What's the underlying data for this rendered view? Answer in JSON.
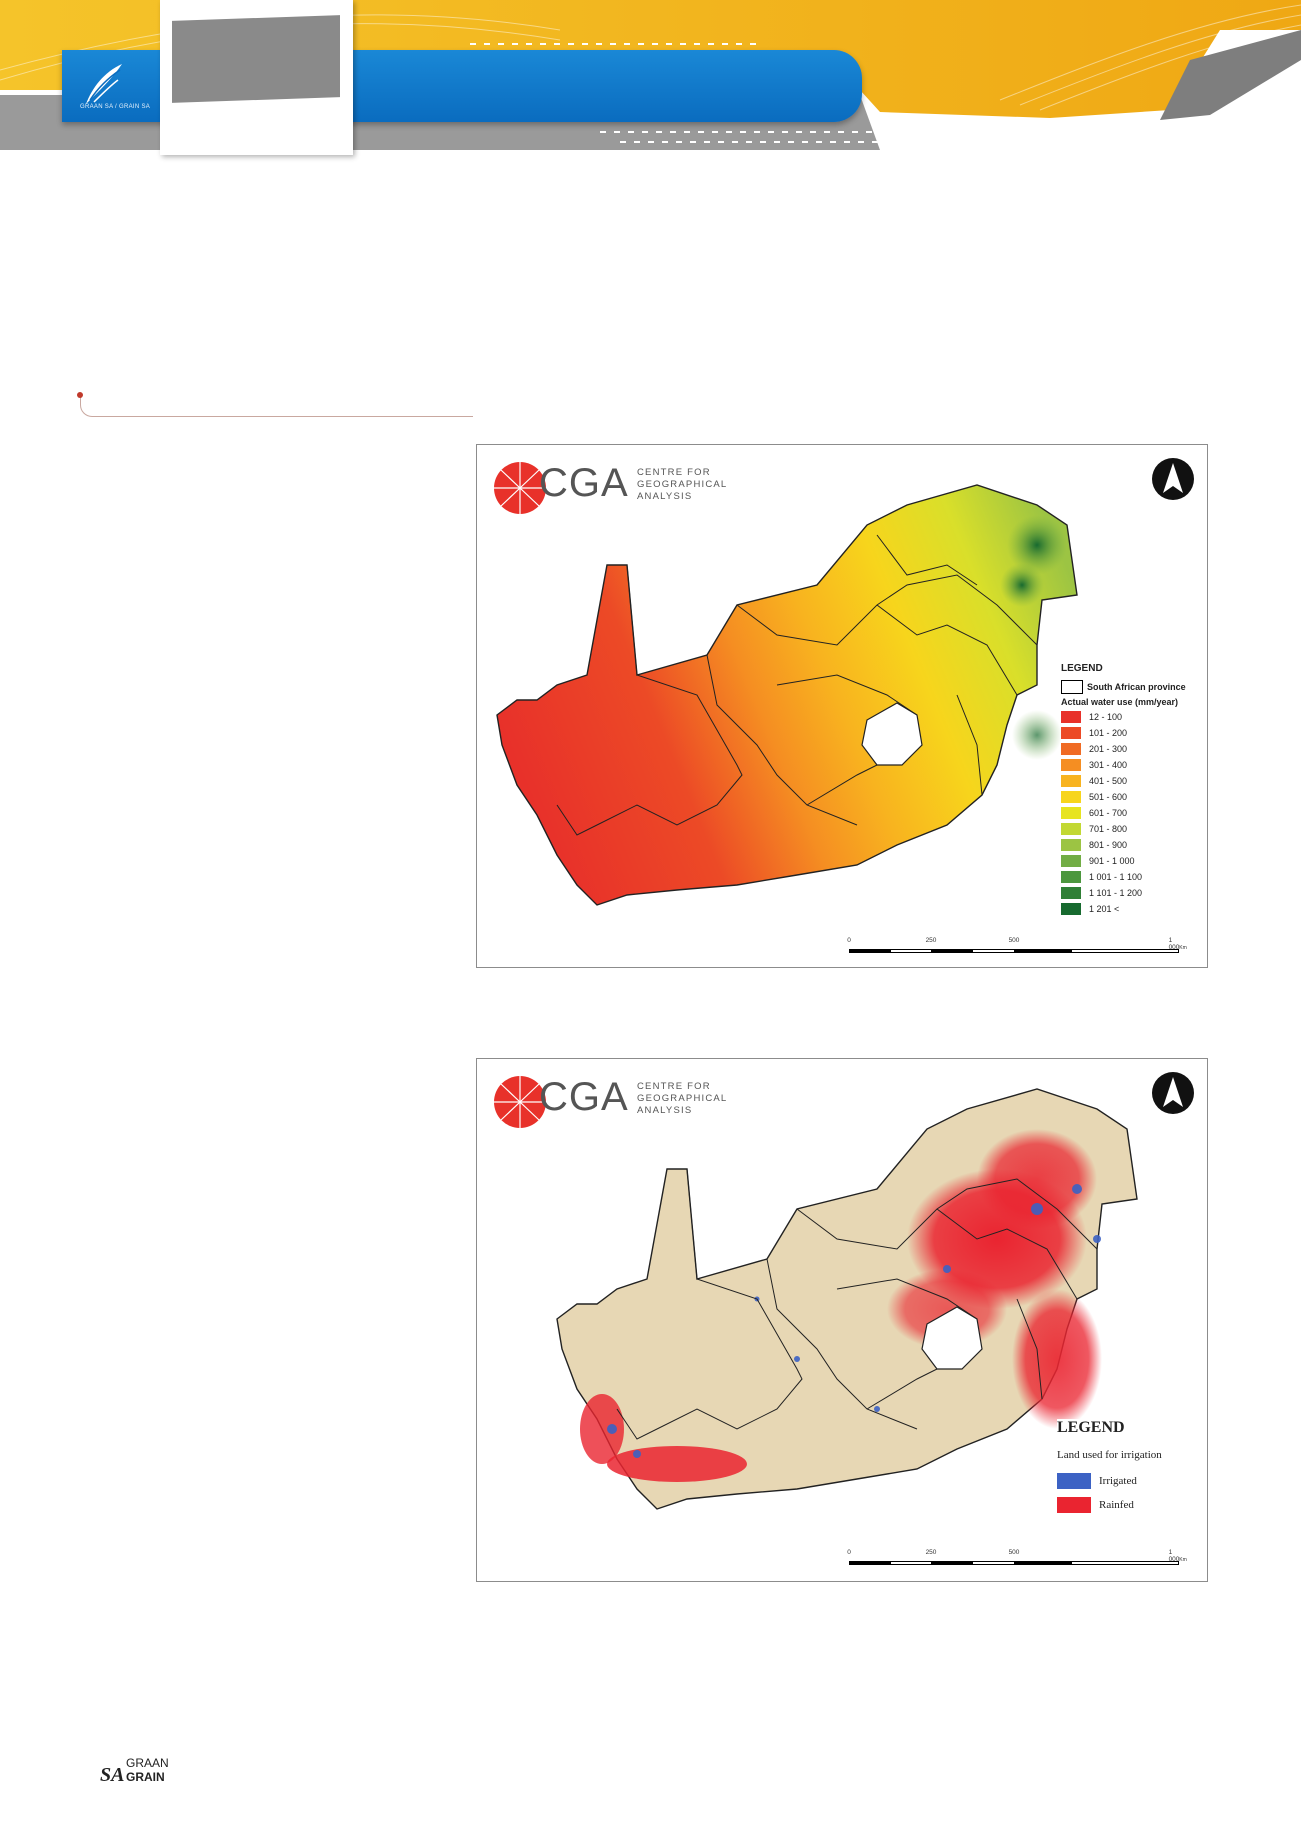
{
  "header": {
    "logo_text": "GRAAN SA / GRAIN SA",
    "colors": {
      "gold": "#f2b21b",
      "blue": "#0a6cbf",
      "gray": "#8a8a8a"
    }
  },
  "maps": [
    {
      "logo_word": "CGA",
      "logo_sub": "CENTRE FOR GEOGRAPHICAL ANALYSIS",
      "legend": {
        "title": "LEGEND",
        "province_label": "South African province",
        "subtitle": "Actual water use (mm/year)",
        "classes": [
          {
            "label": "12 - 100",
            "color": "#e8312a"
          },
          {
            "label": "101 - 200",
            "color": "#ec4a26"
          },
          {
            "label": "201 - 300",
            "color": "#f06b24"
          },
          {
            "label": "301 - 400",
            "color": "#f58e22"
          },
          {
            "label": "401 - 500",
            "color": "#f8b31f"
          },
          {
            "label": "501 - 600",
            "color": "#f7d51c"
          },
          {
            "label": "601 - 700",
            "color": "#e7e420"
          },
          {
            "label": "701 - 800",
            "color": "#c2d833"
          },
          {
            "label": "801 - 900",
            "color": "#9cc443"
          },
          {
            "label": "901 - 1 000",
            "color": "#72ad45"
          },
          {
            "label": "1 001 - 1 100",
            "color": "#4c973e"
          },
          {
            "label": "1 101 - 1 200",
            "color": "#2f7f35"
          },
          {
            "label": "1 201 <",
            "color": "#176a2f"
          }
        ]
      },
      "scale_ticks": [
        "0",
        "250",
        "500",
        "1 000"
      ],
      "scale_unit": "Km"
    },
    {
      "logo_word": "CGA",
      "logo_sub": "CENTRE FOR GEOGRAPHICAL ANALYSIS",
      "legend": {
        "title": "LEGEND",
        "subtitle": "Land used for irrigation",
        "classes": [
          {
            "label": "Irrigated",
            "color": "#3c62c4"
          },
          {
            "label": "Rainfed",
            "color": "#ea2430"
          }
        ]
      },
      "base_color": "#e7d7b4",
      "scale_ticks": [
        "0",
        "250",
        "500",
        "1 000"
      ],
      "scale_unit": "Km"
    }
  ],
  "footer": {
    "sa": "SA",
    "graan": "GRAAN",
    "grain": "GRAIN"
  }
}
